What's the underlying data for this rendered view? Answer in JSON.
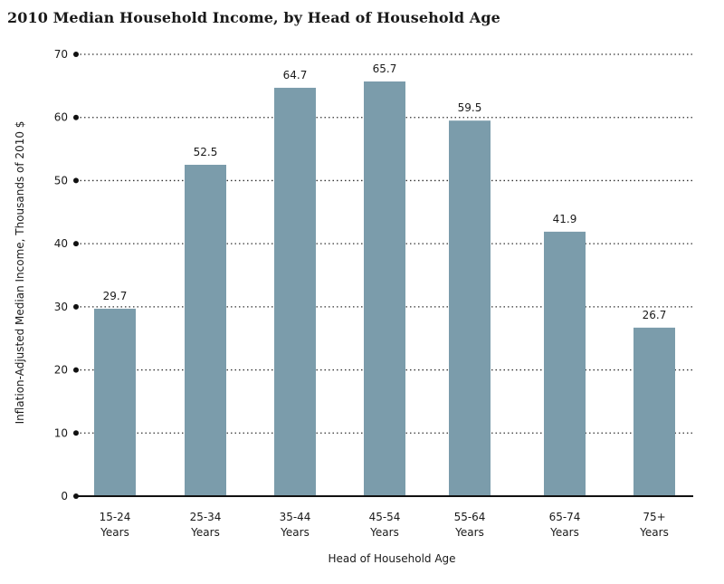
{
  "chart_data": {
    "type": "bar",
    "title": "2010 Median Household Income, by Head of Household Age",
    "xlabel": "Head of Household Age",
    "ylabel": "Inflation-Adjusted Median Income, Thousands of 2010 $",
    "ylim": [
      0,
      70
    ],
    "yticks": [
      0,
      10,
      20,
      30,
      40,
      50,
      60,
      70
    ],
    "categories": [
      [
        "15-24",
        "Years"
      ],
      [
        "25-34",
        "Years"
      ],
      [
        "35-44",
        "Years"
      ],
      [
        "45-54",
        "Years"
      ],
      [
        "55-64",
        "Years"
      ],
      [
        "65-74",
        "Years"
      ],
      [
        "75+",
        "Years"
      ]
    ],
    "values": [
      29.7,
      52.5,
      64.7,
      65.7,
      59.5,
      41.9,
      26.7
    ],
    "value_labels": [
      "29.7",
      "52.5",
      "64.7",
      "65.7",
      "59.5",
      "41.9",
      "26.7"
    ],
    "bar_color": "#7b9cab",
    "grid": "horizontal-dotted"
  }
}
